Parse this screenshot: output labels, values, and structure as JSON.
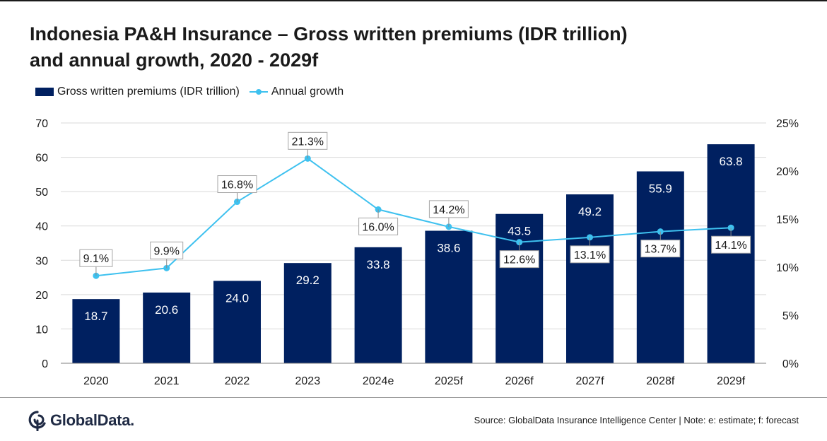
{
  "title_line1": "Indonesia PA&H Insurance – Gross written premiums (IDR trillion)",
  "title_line2": "and annual growth, 2020 - 2029f",
  "source": "Source: GlobalData Insurance Intelligence Center  |  Note: e: estimate; f: forecast",
  "logo": {
    "text": "GlobalData.",
    "icon": "globaldata-logo-icon"
  },
  "colors": {
    "bar": "#002060",
    "line": "#3ec1ef",
    "axis": "#1a1a1a",
    "grid": "#d9d9d9"
  },
  "chart_data": {
    "type": "bar",
    "categories": [
      "2020",
      "2021",
      "2022",
      "2023",
      "2024e",
      "2025f",
      "2026f",
      "2027f",
      "2028f",
      "2029f"
    ],
    "series": [
      {
        "name": "Gross written premiums (IDR trillion)",
        "type": "bar",
        "axis": "left",
        "values": [
          18.7,
          20.6,
          24.0,
          29.2,
          33.8,
          38.6,
          43.5,
          49.2,
          55.9,
          63.8
        ],
        "labels": [
          "18.7",
          "20.6",
          "24.0",
          "29.2",
          "33.8",
          "38.6",
          "43.5",
          "49.2",
          "55.9",
          "63.8"
        ]
      },
      {
        "name": "Annual growth",
        "type": "line",
        "axis": "right",
        "values": [
          9.1,
          9.9,
          16.8,
          21.3,
          16.0,
          14.2,
          12.6,
          13.1,
          13.7,
          14.1
        ],
        "labels": [
          "9.1%",
          "9.9%",
          "16.8%",
          "21.3%",
          "16.0%",
          "14.2%",
          "12.6%",
          "13.1%",
          "13.7%",
          "14.1%"
        ]
      }
    ],
    "y_left": {
      "range": [
        0,
        70
      ],
      "ticks": [
        "0",
        "10",
        "20",
        "30",
        "40",
        "50",
        "60",
        "70"
      ]
    },
    "y_right": {
      "range": [
        0,
        25
      ],
      "ticks": [
        "0%",
        "5%",
        "10%",
        "15%",
        "20%",
        "25%"
      ]
    },
    "grid": true,
    "legend_position": "top-left",
    "line_label_side": [
      "above",
      "above",
      "above",
      "above",
      "below",
      "above",
      "below",
      "below",
      "below",
      "below"
    ]
  }
}
